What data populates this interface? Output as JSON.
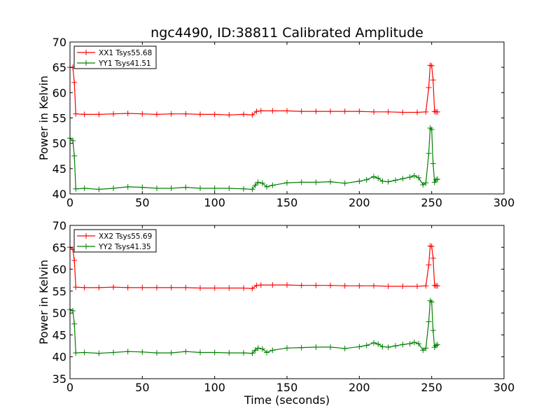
{
  "figure": {
    "title": "ngc4490, ID:38811 Calibrated Amplitude",
    "xlabel": "Time (seconds)"
  },
  "chart_data": [
    {
      "type": "line",
      "title": "ngc4490, ID:38811 Calibrated Amplitude",
      "xlabel": "",
      "ylabel": "Power in Kelvin",
      "xlim": [
        0,
        300
      ],
      "ylim": [
        40,
        70
      ],
      "xticks": [
        0,
        50,
        100,
        150,
        200,
        250,
        300
      ],
      "yticks": [
        40,
        45,
        50,
        55,
        60,
        65,
        70
      ],
      "grid": false,
      "legend_position": "top-left",
      "series": [
        {
          "name": "XX1 Tsys55.68",
          "color": "#ff0000",
          "marker": "+",
          "x": [
            0,
            2,
            3,
            4,
            10,
            20,
            30,
            40,
            50,
            60,
            70,
            80,
            90,
            100,
            110,
            120,
            126,
            129,
            132,
            140,
            150,
            160,
            170,
            180,
            190,
            200,
            210,
            220,
            230,
            240,
            246,
            248,
            249,
            250,
            251,
            252,
            253,
            254
          ],
          "y": [
            65,
            65,
            62,
            55.8,
            55.7,
            55.7,
            55.8,
            55.9,
            55.8,
            55.7,
            55.8,
            55.8,
            55.7,
            55.7,
            55.6,
            55.7,
            55.6,
            56.3,
            56.4,
            56.4,
            56.4,
            56.3,
            56.3,
            56.3,
            56.3,
            56.3,
            56.2,
            56.2,
            56.1,
            56.1,
            56.2,
            61,
            65.4,
            65.3,
            62.5,
            56.3,
            56.2,
            56.2
          ]
        },
        {
          "name": "YY1 Tsys41.51",
          "color": "#008000",
          "marker": "+",
          "x": [
            0,
            2,
            3,
            4,
            10,
            20,
            30,
            40,
            50,
            60,
            70,
            80,
            90,
            100,
            110,
            120,
            126,
            128,
            130,
            133,
            136,
            140,
            150,
            160,
            170,
            180,
            190,
            200,
            205,
            210,
            213,
            216,
            220,
            225,
            230,
            235,
            238,
            241,
            244,
            246,
            248,
            249,
            250,
            251,
            252,
            253,
            254
          ],
          "y": [
            51,
            50.5,
            47.5,
            41,
            41.1,
            40.9,
            41.1,
            41.4,
            41.3,
            41.1,
            41.1,
            41.3,
            41.1,
            41.1,
            41.1,
            41.0,
            40.9,
            41.7,
            42.3,
            42.1,
            41.4,
            41.7,
            42.2,
            42.3,
            42.3,
            42.4,
            42.1,
            42.5,
            42.8,
            43.4,
            43.1,
            42.5,
            42.4,
            42.7,
            43.0,
            43.3,
            43.6,
            43.2,
            41.8,
            42.2,
            48,
            53,
            52.7,
            46,
            42.3,
            42.8,
            42.9
          ]
        }
      ]
    },
    {
      "type": "line",
      "title": "",
      "xlabel": "Time (seconds)",
      "ylabel": "Power in Kelvin",
      "xlim": [
        0,
        300
      ],
      "ylim": [
        35,
        70
      ],
      "xticks": [
        0,
        50,
        100,
        150,
        200,
        250,
        300
      ],
      "yticks": [
        35,
        40,
        45,
        50,
        55,
        60,
        65,
        70
      ],
      "grid": false,
      "legend_position": "top-left",
      "series": [
        {
          "name": "XX2 Tsys55.69",
          "color": "#ff0000",
          "marker": "+",
          "x": [
            0,
            2,
            3,
            4,
            10,
            20,
            30,
            40,
            50,
            60,
            70,
            80,
            90,
            100,
            110,
            120,
            126,
            129,
            132,
            140,
            150,
            160,
            170,
            180,
            190,
            200,
            210,
            220,
            230,
            240,
            246,
            248,
            249,
            250,
            251,
            252,
            253,
            254
          ],
          "y": [
            65,
            64.5,
            62,
            55.9,
            55.8,
            55.8,
            55.9,
            55.8,
            55.8,
            55.8,
            55.8,
            55.8,
            55.7,
            55.7,
            55.7,
            55.7,
            55.6,
            56.3,
            56.4,
            56.4,
            56.4,
            56.3,
            56.3,
            56.3,
            56.2,
            56.2,
            56.2,
            56.1,
            56.1,
            56.1,
            56.2,
            61,
            65.3,
            65.2,
            62.5,
            56.3,
            56.2,
            56.2
          ]
        },
        {
          "name": "YY2 Tsys41.35",
          "color": "#008000",
          "marker": "+",
          "x": [
            0,
            2,
            3,
            4,
            10,
            20,
            30,
            40,
            50,
            60,
            70,
            80,
            90,
            100,
            110,
            120,
            126,
            128,
            130,
            133,
            136,
            140,
            150,
            160,
            170,
            180,
            190,
            200,
            205,
            210,
            213,
            216,
            220,
            225,
            230,
            235,
            238,
            241,
            244,
            246,
            248,
            249,
            250,
            251,
            252,
            253,
            254
          ],
          "y": [
            50.8,
            50.5,
            47.5,
            40.9,
            41.0,
            40.8,
            41.0,
            41.2,
            41.1,
            40.9,
            40.9,
            41.2,
            41.0,
            41.0,
            40.9,
            40.9,
            40.8,
            41.5,
            42.0,
            41.8,
            41.0,
            41.5,
            42.0,
            42.1,
            42.2,
            42.2,
            41.9,
            42.3,
            42.6,
            43.2,
            42.9,
            42.3,
            42.2,
            42.5,
            42.8,
            43.0,
            43.3,
            43.0,
            41.5,
            42.0,
            48,
            52.8,
            52.5,
            46,
            42.2,
            42.6,
            42.8
          ]
        }
      ]
    }
  ]
}
